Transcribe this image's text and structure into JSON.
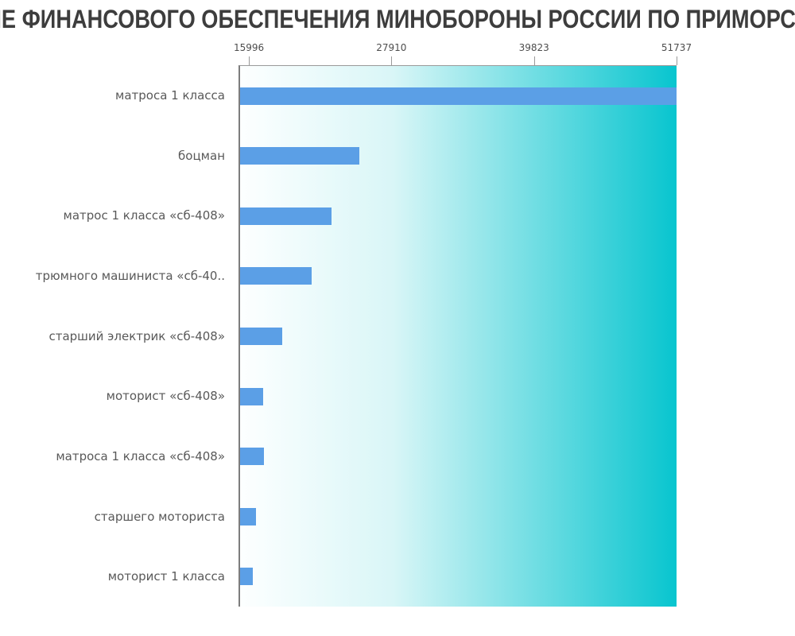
{
  "title": {
    "visible_text": "ИЕ ФИНАНСОВОГО ОБЕСПЕЧЕНИЯ МИНОБОРОНЫ РОССИИ ПО ПРИМОРСК"
  },
  "colors": {
    "bar": "#5b9fe6",
    "plot_gradient_start": "#fdffff",
    "plot_gradient_end": "#08c5cf",
    "axis_line": "#7d7d7d",
    "tick_color": "#999999",
    "tick_label": "#4d4d4d",
    "category_label": "#595959",
    "title": "#3d3d3d"
  },
  "chart_data": {
    "type": "bar",
    "orientation": "horizontal",
    "title": "ИЕ ФИНАНСОВОГО ОБЕСПЕЧЕНИЯ МИНОБОРОНЫ РОССИИ ПО ПРИМОРСК",
    "categories": [
      "матроса 1 класса",
      "боцман",
      "матрос 1 класса «сб-408»",
      "трюмного машиниста «сб-40..",
      "старший электрик «сб-408»",
      "моторист «сб-408»",
      "матроса 1 класса «сб-408»",
      "старшего моториста",
      "моторист 1 класса"
    ],
    "values": [
      51737,
      25100,
      22770,
      21110,
      18650,
      17060,
      17130,
      16460,
      16200
    ],
    "x_ticks": [
      15996,
      27910,
      39823,
      51737
    ],
    "xlim": [
      15130,
      51737
    ],
    "value_axis_position": "top",
    "grid": false,
    "legend": false
  }
}
